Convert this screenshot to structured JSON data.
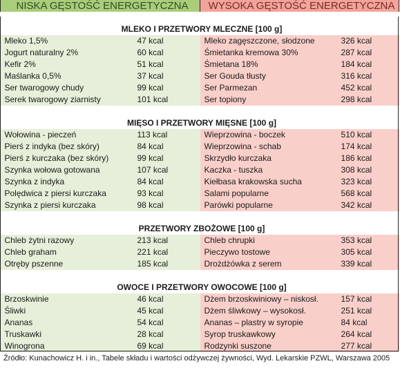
{
  "header": {
    "low_label": "NISKA GĘSTOŚĆ ENERGETYCZNA",
    "high_label": "WYSOKA GĘSTOŚĆ ENERGETYCZNA"
  },
  "sections": [
    {
      "title": "MLEKO I PRZETWORY MLECZNE [100 g]",
      "low": [
        {
          "name": "Mleko 1,5%",
          "kcal": "47 kcal"
        },
        {
          "name": "Jogurt naturalny 2%",
          "kcal": "60 kcal"
        },
        {
          "name": "Kefir 2%",
          "kcal": "51 kcal"
        },
        {
          "name": "Maślanka  0,5%",
          "kcal": "37 kcal"
        },
        {
          "name": "Ser twarogowy chudy",
          "kcal": "99 kcal"
        },
        {
          "name": "Serek twarogowy ziarnisty",
          "kcal": "101 kcal"
        }
      ],
      "high": [
        {
          "name": "Mleko zagęszczone, słodzone",
          "kcal": "326 kcal"
        },
        {
          "name": "Śmietanka kremowa 30%",
          "kcal": "287 kcal"
        },
        {
          "name": "Śmietana 18%",
          "kcal": "184 kcal"
        },
        {
          "name": "Ser Gouda tłusty",
          "kcal": "316 kcal"
        },
        {
          "name": "Ser Parmezan",
          "kcal": "452 kcal"
        },
        {
          "name": "Ser topiony",
          "kcal": "298 kcal"
        }
      ]
    },
    {
      "title": "MIĘSO I PRZETWORY MIĘSNE [100 g]",
      "low": [
        {
          "name": "Wołowina - pieczeń",
          "kcal": "113 kcal"
        },
        {
          "name": "Pierś z indyka  (bez skóry)",
          "kcal": "84 kcal"
        },
        {
          "name": "Pierś z kurczaka (bez skóry)",
          "kcal": "99 kcal"
        },
        {
          "name": "Szynka wołowa gotowana",
          "kcal": "107 kcal"
        },
        {
          "name": "Szynka z indyka",
          "kcal": "84 kcal"
        },
        {
          "name": "Polędwica z piersi kurczaka",
          "kcal": "93 kcal"
        },
        {
          "name": "Szynka z piersi kurczaka",
          "kcal": "98 kcal"
        }
      ],
      "high": [
        {
          "name": "Wieprzowina - boczek",
          "kcal": "510 kcal"
        },
        {
          "name": "Wieprzowina - schab",
          "kcal": "174 kcal"
        },
        {
          "name": "Skrzydło kurczaka",
          "kcal": "186 kcal"
        },
        {
          "name": "Kaczka - tuszka",
          "kcal": "308 kcal"
        },
        {
          "name": "Kiełbasa krakowska sucha",
          "kcal": "323 kcal"
        },
        {
          "name": "Salami popularne",
          "kcal": "568 kcal"
        },
        {
          "name": "Parówki popularne",
          "kcal": "342 kcal"
        }
      ]
    },
    {
      "title": "PRZETWORY ZBOŻOWE [100 g]",
      "low": [
        {
          "name": "Chleb żytni razowy",
          "kcal": "213 kcal"
        },
        {
          "name": "Chleb graham",
          "kcal": "221 kcal"
        },
        {
          "name": "Otręby pszenne",
          "kcal": "185 kcal"
        }
      ],
      "high": [
        {
          "name": "Chleb chrupki",
          "kcal": "353 kcal"
        },
        {
          "name": "Pieczywo tostowe",
          "kcal": "305 kcal"
        },
        {
          "name": "Drożdżówka z serem",
          "kcal": "339 kcal"
        }
      ]
    },
    {
      "title": "OWOCE I PRZETWORY OWOCOWE [100 g]",
      "low": [
        {
          "name": "Brzoskwinie",
          "kcal": "46 kcal"
        },
        {
          "name": "Śliwki",
          "kcal": "45 kcal"
        },
        {
          "name": "Ananas",
          "kcal": "54 kcal"
        },
        {
          "name": "Truskawki",
          "kcal": "28 kcal"
        },
        {
          "name": "Winogrona",
          "kcal": "69 kcal"
        }
      ],
      "high": [
        {
          "name": "Dżem brzoskwiniowy – niskosł.",
          "kcal": "157 kcal"
        },
        {
          "name": "Dżem śliwkowy – wysokosł.",
          "kcal": "251 kcal"
        },
        {
          "name": "Ananas – plastry w syropie",
          "kcal": "84 kcal"
        },
        {
          "name": "Syrop truskawkowy",
          "kcal": "264 kcal"
        },
        {
          "name": "Rodzynki suszone",
          "kcal": "277 kcal"
        }
      ]
    }
  ],
  "source": "Źródło: Kunachowicz H. i in., Tabele składu i wartości odżywczej żywności, Wyd. Lekarskie PZWL, Warszawa 2005",
  "colors": {
    "low_header": "#a9cd7b",
    "high_header": "#f2a49c",
    "low_row": "#e6efd9",
    "high_row": "#f9cfca"
  }
}
